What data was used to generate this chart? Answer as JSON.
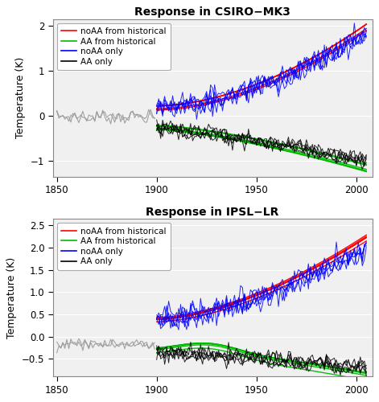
{
  "title1": "Response in CSIRO−MK3",
  "title2": "Response in IPSL−LR",
  "ylabel": "Temperature (K)",
  "xlim": [
    1848,
    2008
  ],
  "ylim1": [
    -1.35,
    2.15
  ],
  "ylim2": [
    -0.9,
    2.65
  ],
  "yticks1": [
    -1.0,
    0.0,
    1.0,
    2.0
  ],
  "yticks2": [
    -0.5,
    0.0,
    0.5,
    1.0,
    1.5,
    2.0,
    2.5
  ],
  "xticks": [
    1850,
    1900,
    1950,
    2000
  ],
  "legend_labels": [
    "noAA from historical",
    "AA from historical",
    "noAA only",
    "AA only"
  ],
  "legend_colors": [
    "red",
    "green",
    "blue",
    "black"
  ],
  "panel_bg": "#f0f0f0",
  "fig_bg": "#ffffff",
  "noise_seed": 7,
  "pre_start": 1850,
  "pre_end": 1899,
  "post_start": 1900,
  "post_end": 2005
}
